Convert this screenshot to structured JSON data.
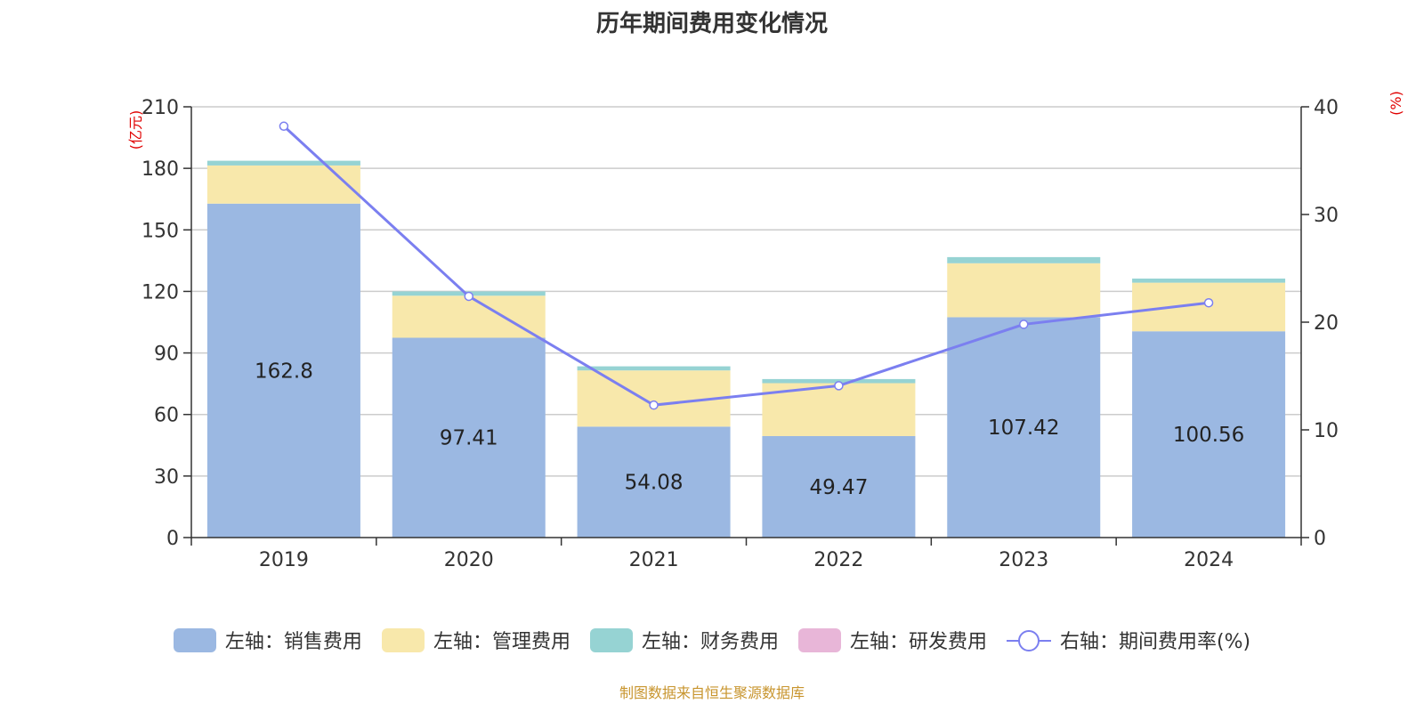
{
  "chart_data": {
    "type": "bar",
    "title": "历年期间费用变化情况",
    "categories": [
      "2019",
      "2020",
      "2021",
      "2022",
      "2023",
      "2024"
    ],
    "left_axis": {
      "label": "(亿元)",
      "min": 0,
      "max": 210,
      "ticks": [
        0,
        30,
        60,
        90,
        120,
        150,
        180,
        210
      ]
    },
    "right_axis": {
      "label": "(%)",
      "min": 0,
      "max": 40,
      "ticks": [
        0,
        10,
        20,
        30,
        40
      ]
    },
    "series": [
      {
        "name": "左轴：销售费用",
        "type": "bar",
        "axis": "left",
        "color": "#9bb8e2",
        "values": [
          162.8,
          97.41,
          54.08,
          49.47,
          107.42,
          100.56
        ],
        "labels": [
          "162.8",
          "97.41",
          "54.08",
          "49.47",
          "107.42",
          "100.56"
        ]
      },
      {
        "name": "左轴：管理费用",
        "type": "bar",
        "axis": "left",
        "color": "#f8e8ab",
        "values": [
          18.6,
          20.5,
          27.4,
          25.8,
          26.3,
          23.7
        ]
      },
      {
        "name": "左轴：财务费用",
        "type": "bar",
        "axis": "left",
        "color": "#96d3d3",
        "values": [
          2.3,
          2.1,
          2.0,
          2.0,
          3.0,
          2.0
        ]
      },
      {
        "name": "左轴：研发费用",
        "type": "bar",
        "axis": "left",
        "color": "#e8b6d8",
        "values": [
          0,
          0,
          0,
          0,
          0,
          0
        ]
      },
      {
        "name": "右轴：期间费用率(%)",
        "type": "line",
        "axis": "right",
        "color": "#7b7ff0",
        "values": [
          38.2,
          22.4,
          12.3,
          14.1,
          19.8,
          21.8
        ]
      }
    ],
    "grid": true,
    "legend_position": "bottom"
  },
  "footer": {
    "source": "制图数据来自恒生聚源数据库"
  }
}
